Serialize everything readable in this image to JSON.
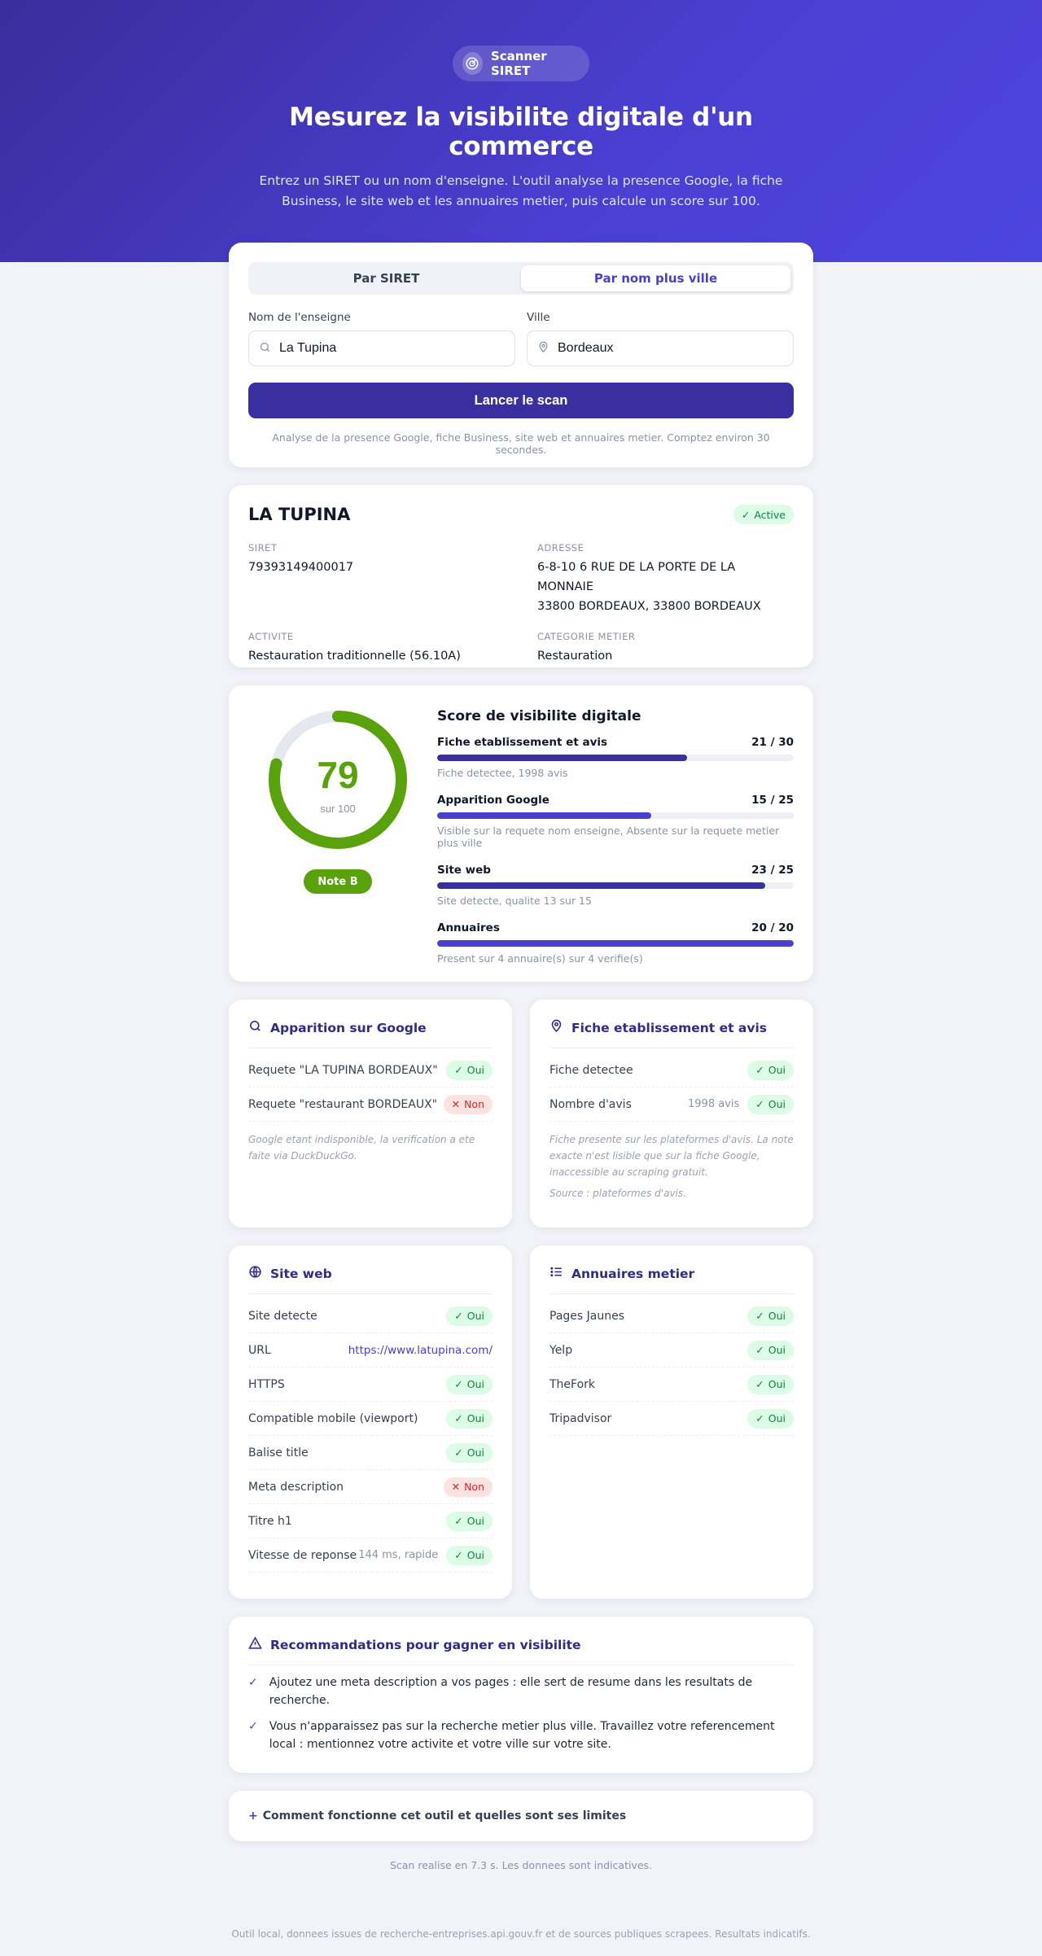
{
  "app": {
    "badge_label": "Scanner SIRET",
    "title": "Mesurez la visibilite digitale d'un commerce",
    "subtitle": "Entrez un SIRET ou un nom d'enseigne. L'outil analyse la presence Google, la fiche Business, le site web et les annuaires metier, puis calcule un score sur 100."
  },
  "form": {
    "tab_siret": "Par SIRET",
    "tab_name": "Par nom plus ville",
    "name_label": "Nom de l'enseigne",
    "name_value": "La Tupina",
    "city_label": "Ville",
    "city_value": "Bordeaux",
    "submit": "Lancer le scan",
    "hint": "Analyse de la presence Google, fiche Business, site web et annuaires metier. Comptez environ 30 secondes."
  },
  "company": {
    "name": "LA TUPINA",
    "status": "Active",
    "siret_label": "SIRET",
    "siret": "79393149400017",
    "address_label": "ADRESSE",
    "address_line1": "6-8-10 6 RUE DE LA PORTE DE LA MONNAIE",
    "address_line2": "33800 BORDEAUX, 33800 BORDEAUX",
    "activity_label": "ACTIVITE",
    "activity": "Restauration traditionnelle (56.10A)",
    "category_label": "CATEGORIE METIER",
    "category": "Restauration"
  },
  "score": {
    "value": "79",
    "max_label": "sur 100",
    "value_fraction": 0.79,
    "grade": "Note B",
    "title": "Score de visibilite digitale",
    "gauge_color": "#5aa20c",
    "items": [
      {
        "label": "Fiche etablissement et avis",
        "value": "21 / 30",
        "fraction": 0.7,
        "desc": "Fiche detectee, 1998 avis"
      },
      {
        "label": "Apparition Google",
        "value": "15 / 25",
        "fraction": 0.6,
        "desc": "Visible sur la requete nom enseigne, Absente sur la requete metier plus ville"
      },
      {
        "label": "Site web",
        "value": "23 / 25",
        "fraction": 0.92,
        "desc": "Site detecte, qualite 13 sur 15"
      },
      {
        "label": "Annuaires",
        "value": "20 / 20",
        "fraction": 1.0,
        "desc": "Present sur 4 annuaire(s) sur 4 verifie(s)"
      }
    ]
  },
  "google": {
    "title": "Apparition sur Google",
    "rows": [
      {
        "label": "Requete \"LA TUPINA BORDEAUX\"",
        "badge": "Oui"
      },
      {
        "label": "Requete \"restaurant BORDEAUX\"",
        "badge": "Non"
      }
    ],
    "note": "Google etant indisponible, la verification a ete faite via DuckDuckGo."
  },
  "fiche": {
    "title": "Fiche etablissement et avis",
    "rows": [
      {
        "label": "Fiche detectee",
        "extra": "",
        "badge": "Oui"
      },
      {
        "label": "Nombre d'avis",
        "extra": "1998 avis",
        "badge": "Oui"
      }
    ],
    "note1": "Fiche presente sur les plateformes d'avis. La note exacte n'est lisible que sur la fiche Google, inaccessible au scraping gratuit.",
    "note2": "Source : plateformes d'avis."
  },
  "site": {
    "title": "Site web",
    "rows": [
      {
        "label": "Site detecte",
        "extra": "",
        "badge": "Oui"
      },
      {
        "label": "URL",
        "link": "https://www.latupina.com/"
      },
      {
        "label": "HTTPS",
        "extra": "",
        "badge": "Oui"
      },
      {
        "label": "Compatible mobile (viewport)",
        "extra": "",
        "badge": "Oui"
      },
      {
        "label": "Balise title",
        "extra": "",
        "badge": "Oui"
      },
      {
        "label": "Meta description",
        "extra": "",
        "badge": "Non"
      },
      {
        "label": "Titre h1",
        "extra": "",
        "badge": "Oui"
      },
      {
        "label": "Vitesse de reponse",
        "extra": "144 ms, rapide",
        "badge": "Oui"
      }
    ]
  },
  "annuaires": {
    "title": "Annuaires metier",
    "rows": [
      {
        "label": "Pages Jaunes",
        "badge": "Oui"
      },
      {
        "label": "Yelp",
        "badge": "Oui"
      },
      {
        "label": "TheFork",
        "badge": "Oui"
      },
      {
        "label": "Tripadvisor",
        "badge": "Oui"
      }
    ]
  },
  "reco": {
    "title": "Recommandations pour gagner en visibilite",
    "items": [
      "Ajoutez une meta description a vos pages : elle sert de resume dans les resultats de recherche.",
      "Vous n'apparaissez pas sur la recherche metier plus ville. Travaillez votre referencement local : mentionnez votre activite et votre ville sur votre site."
    ]
  },
  "faq": {
    "plus": "+",
    "label": "Comment fonctionne cet outil et quelles sont ses limites"
  },
  "timing": "Scan realise en 7.3 s. Les donnees sont indicatives.",
  "footer": "Outil local, donnees issues de recherche-entreprises.api.gouv.fr et de sources publiques scrapees. Resultats indicatifs."
}
